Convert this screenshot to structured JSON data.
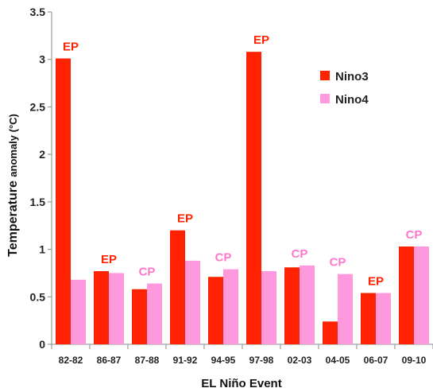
{
  "chart_data": {
    "type": "bar",
    "xlabel": "EL Niño Event",
    "ylabel_main": "Temperature",
    "ylabel_small": "anomaly (°C)",
    "ylim": [
      0,
      3.5
    ],
    "yticks": [
      "0",
      "0.5",
      "1",
      "1.5",
      "2",
      "2.5",
      "3",
      "3.5"
    ],
    "categories": [
      "82-82",
      "86-87",
      "87-88",
      "91-92",
      "94-95",
      "97-98",
      "02-03",
      "04-05",
      "06-07",
      "09-10"
    ],
    "series": [
      {
        "name": "Nino3",
        "color": "#ff2200",
        "values": [
          3.01,
          0.77,
          0.58,
          1.2,
          0.71,
          3.08,
          0.81,
          0.24,
          0.54,
          1.03
        ]
      },
      {
        "name": "Nino4",
        "color": "#ff99dd",
        "values": [
          0.68,
          0.75,
          0.64,
          0.88,
          0.79,
          0.77,
          0.83,
          0.74,
          0.54,
          1.03
        ]
      }
    ],
    "annotations": [
      "EP",
      "EP",
      "CP",
      "EP",
      "CP",
      "EP",
      "CP",
      "CP",
      "EP",
      "CP"
    ],
    "annotation_colors": {
      "EP": "#ff2200",
      "CP": "#ff77cc"
    },
    "legend_position": "top-right",
    "grid": false
  }
}
